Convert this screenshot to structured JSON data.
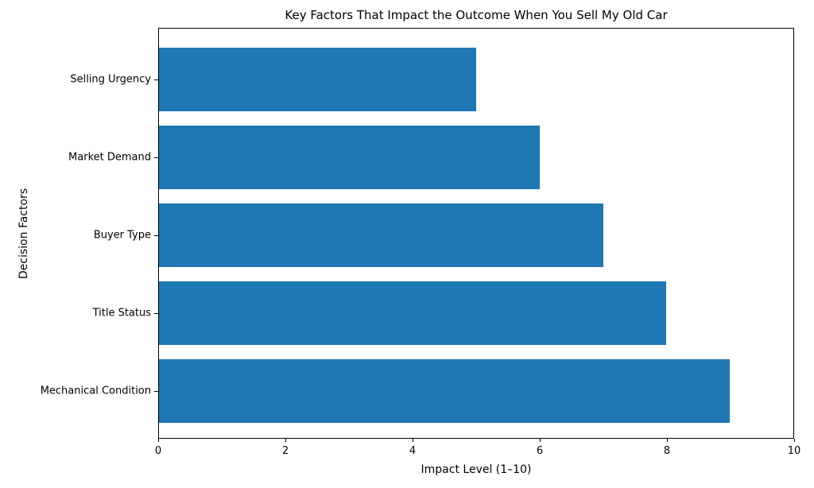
{
  "chart_data": {
    "type": "bar",
    "orientation": "horizontal",
    "title": "Key Factors That Impact the Outcome When You Sell My Old Car",
    "xlabel": "Impact Level (1–10)",
    "ylabel": "Decision Factors",
    "categories": [
      "Selling Urgency",
      "Market Demand",
      "Buyer Type",
      "Title Status",
      "Mechanical Condition"
    ],
    "values": [
      5,
      6,
      7,
      8,
      9
    ],
    "xlim": [
      0,
      10
    ],
    "xticks": [
      0,
      2,
      4,
      6,
      8,
      10
    ],
    "grid": false,
    "legend": null,
    "bar_color": "#1f77b4",
    "axis_color": "#000000",
    "text_color": "#000000",
    "background_color": "#ffffff"
  }
}
